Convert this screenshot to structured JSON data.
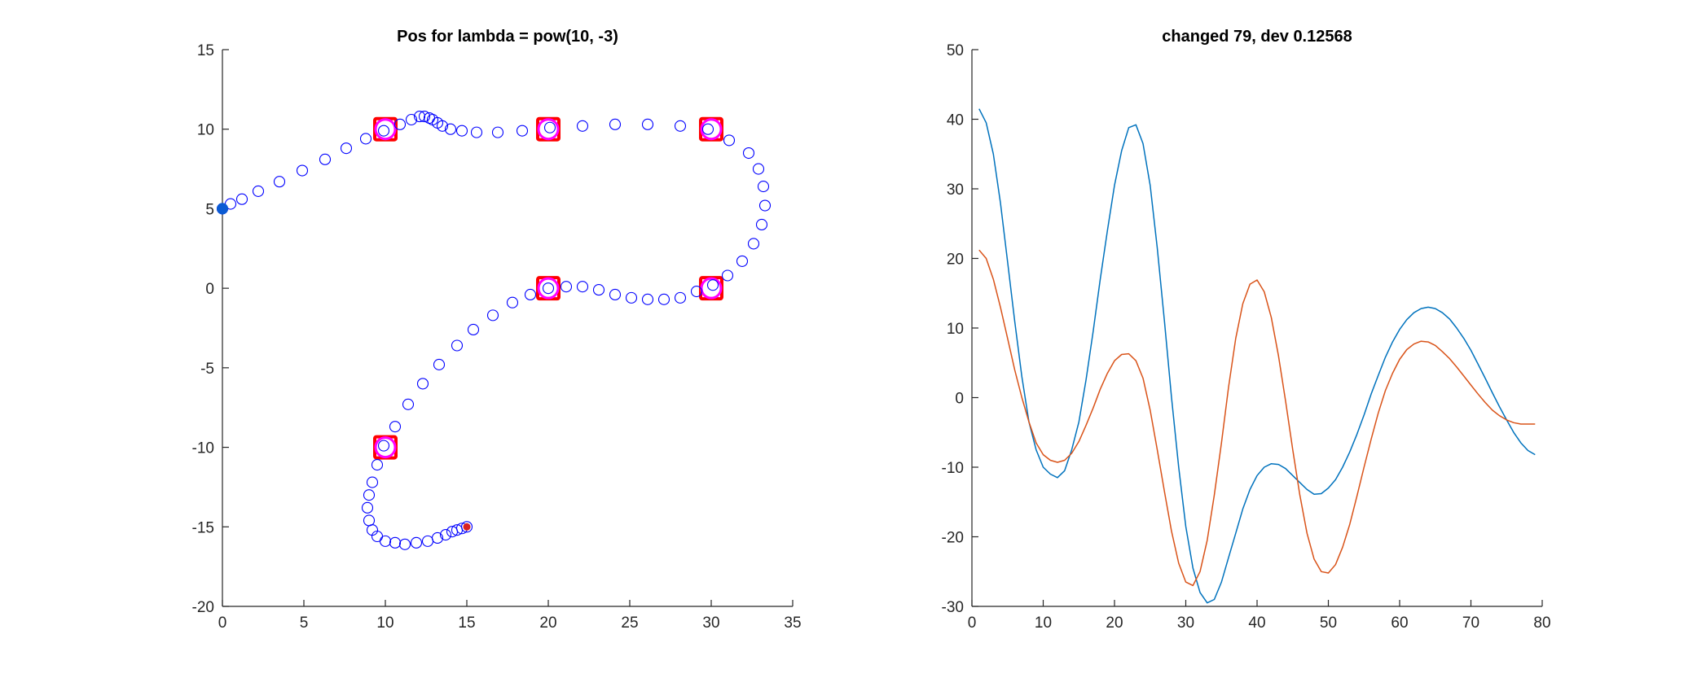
{
  "colors": {
    "marker_blue": "#0000ff",
    "start_fill": "#0b5bd3",
    "end_fill": "#d92222",
    "waypoint_square": "#ff0000",
    "waypoint_circle": "#ff00ff",
    "line_blue": "#0072bd",
    "line_orange": "#d95319",
    "axis": "#262626"
  },
  "chart_data": [
    {
      "type": "scatter",
      "title": "Pos for lambda = pow(10, -3)",
      "xlabel": "",
      "ylabel": "",
      "xlim": [
        0,
        35
      ],
      "ylim": [
        -20,
        15
      ],
      "xticks": [
        0,
        5,
        10,
        15,
        20,
        25,
        30,
        35
      ],
      "yticks": [
        -20,
        -15,
        -10,
        -5,
        0,
        5,
        10,
        15
      ],
      "grid": false,
      "start_point": [
        0,
        5
      ],
      "end_point": [
        15,
        -15
      ],
      "waypoints": [
        [
          10,
          10
        ],
        [
          20,
          10
        ],
        [
          30,
          10
        ],
        [
          20,
          0
        ],
        [
          30,
          0
        ],
        [
          10,
          -10
        ]
      ],
      "path": [
        [
          0,
          5.0
        ],
        [
          0.5,
          5.3
        ],
        [
          1.2,
          5.6
        ],
        [
          2.2,
          6.1
        ],
        [
          3.5,
          6.7
        ],
        [
          4.9,
          7.4
        ],
        [
          6.3,
          8.1
        ],
        [
          7.6,
          8.8
        ],
        [
          8.8,
          9.4
        ],
        [
          9.9,
          9.9
        ],
        [
          10.9,
          10.3
        ],
        [
          11.6,
          10.6
        ],
        [
          12.1,
          10.8
        ],
        [
          12.4,
          10.8
        ],
        [
          12.7,
          10.7
        ],
        [
          12.9,
          10.6
        ],
        [
          13.2,
          10.4
        ],
        [
          13.5,
          10.2
        ],
        [
          14.0,
          10.0
        ],
        [
          14.7,
          9.9
        ],
        [
          15.6,
          9.8
        ],
        [
          16.9,
          9.8
        ],
        [
          18.4,
          9.9
        ],
        [
          20.1,
          10.1
        ],
        [
          22.1,
          10.2
        ],
        [
          24.1,
          10.3
        ],
        [
          26.1,
          10.3
        ],
        [
          28.1,
          10.2
        ],
        [
          29.8,
          10.0
        ],
        [
          31.1,
          9.3
        ],
        [
          32.3,
          8.5
        ],
        [
          32.9,
          7.5
        ],
        [
          33.2,
          6.4
        ],
        [
          33.3,
          5.2
        ],
        [
          33.1,
          4.0
        ],
        [
          32.6,
          2.8
        ],
        [
          31.9,
          1.7
        ],
        [
          31.0,
          0.8
        ],
        [
          30.1,
          0.2
        ],
        [
          29.1,
          -0.2
        ],
        [
          28.1,
          -0.6
        ],
        [
          27.1,
          -0.7
        ],
        [
          26.1,
          -0.7
        ],
        [
          25.1,
          -0.6
        ],
        [
          24.1,
          -0.4
        ],
        [
          23.1,
          -0.1
        ],
        [
          22.1,
          0.1
        ],
        [
          21.1,
          0.1
        ],
        [
          20.0,
          0.0
        ],
        [
          18.9,
          -0.4
        ],
        [
          17.8,
          -0.9
        ],
        [
          16.6,
          -1.7
        ],
        [
          15.4,
          -2.6
        ],
        [
          14.4,
          -3.6
        ],
        [
          13.3,
          -4.8
        ],
        [
          12.3,
          -6.0
        ],
        [
          11.4,
          -7.3
        ],
        [
          10.6,
          -8.7
        ],
        [
          9.9,
          -9.9
        ],
        [
          9.5,
          -11.1
        ],
        [
          9.2,
          -12.2
        ],
        [
          9.0,
          -13.0
        ],
        [
          8.9,
          -13.8
        ],
        [
          9.0,
          -14.6
        ],
        [
          9.2,
          -15.2
        ],
        [
          9.5,
          -15.6
        ],
        [
          10.0,
          -15.9
        ],
        [
          10.6,
          -16.0
        ],
        [
          11.2,
          -16.1
        ],
        [
          11.9,
          -16.0
        ],
        [
          12.6,
          -15.9
        ],
        [
          13.2,
          -15.7
        ],
        [
          13.7,
          -15.5
        ],
        [
          14.1,
          -15.3
        ],
        [
          14.4,
          -15.2
        ],
        [
          14.7,
          -15.1
        ],
        [
          15.0,
          -15.0
        ]
      ]
    },
    {
      "type": "line",
      "title": "changed 79, dev 0.12568",
      "xlabel": "",
      "ylabel": "",
      "xlim": [
        0,
        80
      ],
      "ylim": [
        -30,
        50
      ],
      "xticks": [
        0,
        10,
        20,
        30,
        40,
        50,
        60,
        70,
        80
      ],
      "yticks": [
        -30,
        -20,
        -10,
        0,
        10,
        20,
        30,
        40,
        50
      ],
      "grid": false,
      "series": [
        {
          "color": "#0072bd",
          "points": [
            [
              1,
              41.5
            ],
            [
              2,
              39.5
            ],
            [
              3,
              35.0
            ],
            [
              4,
              28.0
            ],
            [
              5,
              19.5
            ],
            [
              6,
              11.0
            ],
            [
              7,
              3.0
            ],
            [
              8,
              -3.5
            ],
            [
              9,
              -7.5
            ],
            [
              10,
              -10.0
            ],
            [
              11,
              -11.0
            ],
            [
              12,
              -11.5
            ],
            [
              13,
              -10.5
            ],
            [
              14,
              -7.5
            ],
            [
              15,
              -3.5
            ],
            [
              16,
              2.5
            ],
            [
              17,
              9.5
            ],
            [
              18,
              17.0
            ],
            [
              19,
              24.0
            ],
            [
              20,
              30.5
            ],
            [
              21,
              35.5
            ],
            [
              22,
              38.8
            ],
            [
              23,
              39.2
            ],
            [
              24,
              36.5
            ],
            [
              25,
              30.5
            ],
            [
              26,
              21.5
            ],
            [
              27,
              11.0
            ],
            [
              28,
              0.0
            ],
            [
              29,
              -10.0
            ],
            [
              30,
              -18.5
            ],
            [
              31,
              -24.5
            ],
            [
              32,
              -28.0
            ],
            [
              33,
              -29.5
            ],
            [
              34,
              -29.0
            ],
            [
              35,
              -26.5
            ],
            [
              36,
              -23.0
            ],
            [
              37,
              -19.5
            ],
            [
              38,
              -16.0
            ],
            [
              39,
              -13.2
            ],
            [
              40,
              -11.2
            ],
            [
              41,
              -10.0
            ],
            [
              42,
              -9.5
            ],
            [
              43,
              -9.6
            ],
            [
              44,
              -10.2
            ],
            [
              45,
              -11.2
            ],
            [
              46,
              -12.2
            ],
            [
              47,
              -13.2
            ],
            [
              48,
              -13.9
            ],
            [
              49,
              -13.8
            ],
            [
              50,
              -13.0
            ],
            [
              51,
              -11.8
            ],
            [
              52,
              -10.0
            ],
            [
              53,
              -7.8
            ],
            [
              54,
              -5.3
            ],
            [
              55,
              -2.5
            ],
            [
              56,
              0.5
            ],
            [
              57,
              3.2
            ],
            [
              58,
              5.8
            ],
            [
              59,
              8.0
            ],
            [
              60,
              9.8
            ],
            [
              61,
              11.2
            ],
            [
              62,
              12.2
            ],
            [
              63,
              12.8
            ],
            [
              64,
              13.0
            ],
            [
              65,
              12.8
            ],
            [
              66,
              12.2
            ],
            [
              67,
              11.3
            ],
            [
              68,
              10.0
            ],
            [
              69,
              8.5
            ],
            [
              70,
              6.8
            ],
            [
              71,
              4.8
            ],
            [
              72,
              2.8
            ],
            [
              73,
              0.7
            ],
            [
              74,
              -1.3
            ],
            [
              75,
              -3.2
            ],
            [
              76,
              -5.0
            ],
            [
              77,
              -6.5
            ],
            [
              78,
              -7.6
            ],
            [
              79,
              -8.2
            ]
          ]
        },
        {
          "color": "#d95319",
          "points": [
            [
              1,
              21.2
            ],
            [
              2,
              20.0
            ],
            [
              3,
              17.0
            ],
            [
              4,
              13.0
            ],
            [
              5,
              8.5
            ],
            [
              6,
              4.0
            ],
            [
              7,
              0.0
            ],
            [
              8,
              -3.5
            ],
            [
              9,
              -6.5
            ],
            [
              10,
              -8.2
            ],
            [
              11,
              -9.0
            ],
            [
              12,
              -9.3
            ],
            [
              13,
              -9.0
            ],
            [
              14,
              -8.0
            ],
            [
              15,
              -6.3
            ],
            [
              16,
              -4.0
            ],
            [
              17,
              -1.5
            ],
            [
              18,
              1.2
            ],
            [
              19,
              3.5
            ],
            [
              20,
              5.3
            ],
            [
              21,
              6.2
            ],
            [
              22,
              6.3
            ],
            [
              23,
              5.3
            ],
            [
              24,
              2.8
            ],
            [
              25,
              -1.8
            ],
            [
              26,
              -7.5
            ],
            [
              27,
              -13.5
            ],
            [
              28,
              -19.2
            ],
            [
              29,
              -23.8
            ],
            [
              30,
              -26.5
            ],
            [
              31,
              -27.0
            ],
            [
              32,
              -25.0
            ],
            [
              33,
              -20.5
            ],
            [
              34,
              -14.0
            ],
            [
              35,
              -6.5
            ],
            [
              36,
              1.5
            ],
            [
              37,
              8.5
            ],
            [
              38,
              13.5
            ],
            [
              39,
              16.3
            ],
            [
              40,
              16.9
            ],
            [
              41,
              15.2
            ],
            [
              42,
              11.5
            ],
            [
              43,
              6.0
            ],
            [
              44,
              -0.5
            ],
            [
              45,
              -7.5
            ],
            [
              46,
              -14.0
            ],
            [
              47,
              -19.5
            ],
            [
              48,
              -23.2
            ],
            [
              49,
              -25.0
            ],
            [
              50,
              -25.2
            ],
            [
              51,
              -24.0
            ],
            [
              52,
              -21.5
            ],
            [
              53,
              -18.2
            ],
            [
              54,
              -14.2
            ],
            [
              55,
              -10.0
            ],
            [
              56,
              -6.0
            ],
            [
              57,
              -2.2
            ],
            [
              58,
              1.0
            ],
            [
              59,
              3.5
            ],
            [
              60,
              5.5
            ],
            [
              61,
              6.9
            ],
            [
              62,
              7.7
            ],
            [
              63,
              8.1
            ],
            [
              64,
              8.0
            ],
            [
              65,
              7.5
            ],
            [
              66,
              6.6
            ],
            [
              67,
              5.6
            ],
            [
              68,
              4.4
            ],
            [
              69,
              3.1
            ],
            [
              70,
              1.8
            ],
            [
              71,
              0.5
            ],
            [
              72,
              -0.7
            ],
            [
              73,
              -1.8
            ],
            [
              74,
              -2.6
            ],
            [
              75,
              -3.2
            ],
            [
              76,
              -3.6
            ],
            [
              77,
              -3.8
            ],
            [
              78,
              -3.8
            ],
            [
              79,
              -3.8
            ]
          ]
        }
      ]
    }
  ]
}
